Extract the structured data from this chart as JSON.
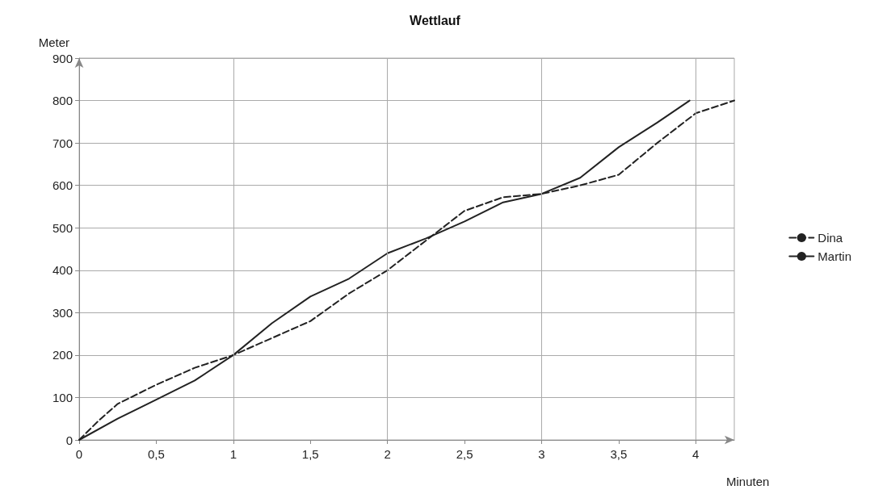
{
  "chart_data": {
    "type": "line",
    "title": "Wettlauf",
    "xlabel": "Minuten",
    "ylabel": "Meter",
    "xlim": [
      0,
      4.25
    ],
    "xticks": [
      0,
      {
        "value": 0.5,
        "label": "0,5"
      },
      1,
      {
        "value": 1.5,
        "label": "1,5"
      },
      2,
      {
        "value": 2.5,
        "label": "2,5"
      },
      3,
      {
        "value": 3.5,
        "label": "3,5"
      },
      4
    ],
    "ylim": [
      0,
      900
    ],
    "yticks": [
      0,
      100,
      200,
      300,
      400,
      500,
      600,
      700,
      800,
      900
    ],
    "grid": true,
    "legend": "right",
    "marker": "none",
    "series": [
      {
        "name": "Dina",
        "color": "#222222",
        "line_style": "dashed",
        "x": [
          0,
          0.125,
          0.25,
          0.5,
          0.75,
          1,
          1.25,
          1.5,
          1.75,
          2,
          2.25,
          2.5,
          2.75,
          3,
          3.25,
          3.5,
          3.75,
          4,
          4.25
        ],
        "values": [
          0,
          45,
          85,
          130,
          170,
          200,
          240,
          280,
          345,
          400,
          470,
          540,
          572,
          580,
          600,
          625,
          700,
          770,
          800
        ]
      },
      {
        "name": "Martin",
        "color": "#222222",
        "line_style": "solid",
        "x": [
          0,
          0.25,
          0.5,
          0.75,
          1,
          1.25,
          1.5,
          1.75,
          2,
          2.25,
          2.5,
          2.75,
          3,
          3.25,
          3.5,
          3.75,
          3.96
        ],
        "values": [
          0,
          50,
          95,
          140,
          200,
          275,
          338,
          380,
          440,
          475,
          515,
          560,
          580,
          618,
          690,
          748,
          800
        ]
      }
    ]
  }
}
